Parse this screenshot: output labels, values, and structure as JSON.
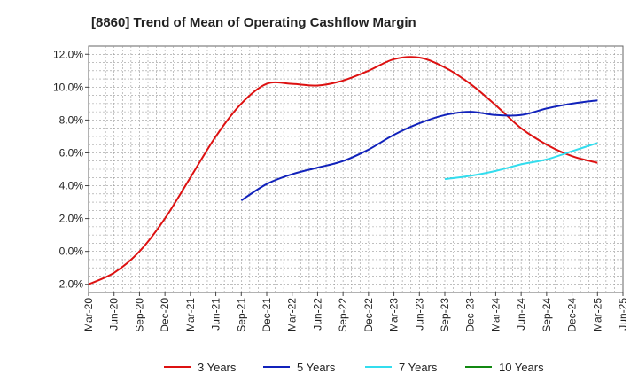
{
  "chart_data": {
    "type": "line",
    "title": "[8860]  Trend of Mean of Operating Cashflow Margin",
    "xlabel": "",
    "ylabel": "",
    "x_ticks": [
      "Mar-20",
      "Jun-20",
      "Sep-20",
      "Dec-20",
      "Mar-21",
      "Jun-21",
      "Sep-21",
      "Dec-21",
      "Mar-22",
      "Jun-22",
      "Sep-22",
      "Dec-22",
      "Mar-23",
      "Jun-23",
      "Sep-23",
      "Dec-23",
      "Mar-24",
      "Jun-24",
      "Sep-24",
      "Dec-24",
      "Mar-25",
      "Jun-25"
    ],
    "y_ticks": [
      "-2.0%",
      "0.0%",
      "2.0%",
      "4.0%",
      "6.0%",
      "8.0%",
      "10.0%",
      "12.0%"
    ],
    "ylim": [
      -2.5,
      12.5
    ],
    "grid": true,
    "legend_position": "bottom",
    "series": [
      {
        "name": "3 Years",
        "color": "#dd1111",
        "x": [
          "Mar-20",
          "Jun-20",
          "Sep-20",
          "Dec-20",
          "Mar-21",
          "Jun-21",
          "Sep-21",
          "Dec-21",
          "Mar-22",
          "Jun-22",
          "Sep-22",
          "Dec-22",
          "Mar-23",
          "Jun-23",
          "Sep-23",
          "Dec-23",
          "Mar-24",
          "Jun-24",
          "Sep-24",
          "Dec-24",
          "Mar-25"
        ],
        "values": [
          -2.0,
          -1.3,
          0.0,
          2.0,
          4.5,
          7.0,
          9.0,
          10.2,
          10.2,
          10.1,
          10.4,
          11.0,
          11.7,
          11.8,
          11.2,
          10.2,
          8.9,
          7.5,
          6.5,
          5.8,
          5.4
        ]
      },
      {
        "name": "5 Years",
        "color": "#1122bb",
        "x": [
          "Sep-21",
          "Dec-21",
          "Mar-22",
          "Jun-22",
          "Sep-22",
          "Dec-22",
          "Mar-23",
          "Jun-23",
          "Sep-23",
          "Dec-23",
          "Mar-24",
          "Jun-24",
          "Sep-24",
          "Dec-24",
          "Mar-25"
        ],
        "values": [
          3.1,
          4.1,
          4.7,
          5.1,
          5.5,
          6.2,
          7.1,
          7.8,
          8.3,
          8.5,
          8.3,
          8.3,
          8.7,
          9.0,
          9.2
        ]
      },
      {
        "name": "7 Years",
        "color": "#33ddee",
        "x": [
          "Sep-23",
          "Dec-23",
          "Mar-24",
          "Jun-24",
          "Sep-24",
          "Dec-24",
          "Mar-25"
        ],
        "values": [
          4.4,
          4.6,
          4.9,
          5.3,
          5.6,
          6.1,
          6.6
        ]
      },
      {
        "name": "10 Years",
        "color": "#118811",
        "x": [],
        "values": []
      }
    ]
  }
}
